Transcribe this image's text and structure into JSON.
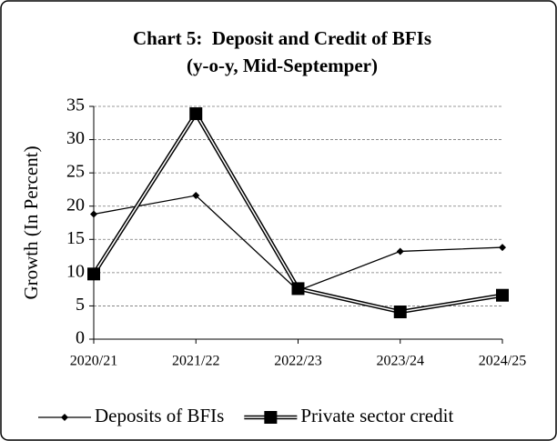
{
  "chart_data": {
    "type": "line",
    "title": "Chart 5:  Deposit and Credit of BFIs",
    "subtitle": "(y-o-y, Mid-Septemper)",
    "y_label": "Growth (In Percent)",
    "categories": [
      "2020/21",
      "2021/22",
      "2022/23",
      "2023/24",
      "2024/25"
    ],
    "series": [
      {
        "name": "Deposits of BFIs",
        "color": "#000000",
        "marker": "diamond",
        "line_style": "single",
        "values": [
          18.8,
          21.6,
          7.3,
          13.2,
          13.8
        ]
      },
      {
        "name": "Private sector credit",
        "color": "#000000",
        "marker": "square",
        "line_style": "double",
        "values": [
          9.8,
          33.9,
          7.6,
          4.1,
          6.6
        ]
      }
    ],
    "ylim": [
      0,
      35
    ],
    "yticks": [
      0,
      5,
      10,
      15,
      20,
      25,
      30,
      35
    ],
    "grid": true,
    "legend": "bottom"
  }
}
